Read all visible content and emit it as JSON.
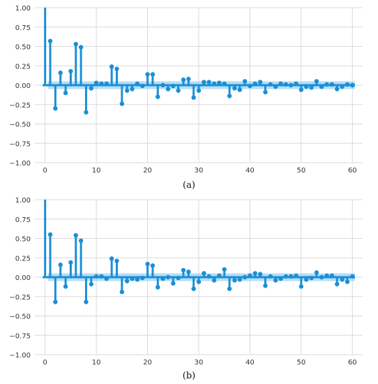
{
  "chart_data": [
    {
      "type": "stem",
      "title": "",
      "xlabel": "",
      "ylabel": "",
      "caption": "(a)",
      "xlim": [
        -2,
        62
      ],
      "ylim": [
        -1.0,
        1.0
      ],
      "xticks": [
        0,
        10,
        20,
        30,
        40,
        50,
        60
      ],
      "yticks": [
        1.0,
        0.75,
        0.5,
        0.25,
        0.0,
        -0.25,
        -0.5,
        -0.75,
        -1.0
      ],
      "xtick_labels": [
        "0",
        "10",
        "20",
        "30",
        "40",
        "50",
        "60"
      ],
      "ytick_labels": [
        "1.00",
        "0.75",
        "0.50",
        "0.25",
        "0.00",
        "−0.25",
        "−0.50",
        "−0.75",
        "−1.00"
      ],
      "grid": true,
      "confidence_band": 0.05,
      "colors": {
        "stem": "#1a8fd6",
        "band": "#9fd3f2",
        "axis": "#1a8fd6",
        "grid": "#d9d9d9"
      },
      "values": [
        1.0,
        0.57,
        -0.3,
        0.16,
        -0.1,
        0.18,
        0.53,
        0.49,
        -0.35,
        -0.04,
        0.03,
        0.02,
        0.02,
        0.24,
        0.21,
        -0.24,
        -0.07,
        -0.05,
        0.02,
        -0.01,
        0.14,
        0.14,
        -0.15,
        0.0,
        -0.05,
        -0.01,
        -0.07,
        0.07,
        0.08,
        -0.16,
        -0.07,
        0.04,
        0.04,
        0.02,
        0.03,
        0.02,
        -0.14,
        -0.04,
        -0.06,
        0.05,
        -0.01,
        0.02,
        0.04,
        -0.09,
        0.01,
        -0.02,
        0.02,
        0.01,
        0.0,
        0.02,
        -0.06,
        -0.02,
        -0.03,
        0.05,
        -0.02,
        0.01,
        0.01,
        -0.05,
        -0.02,
        0.01,
        0.0
      ]
    },
    {
      "type": "stem",
      "title": "",
      "xlabel": "",
      "ylabel": "",
      "caption": "(b)",
      "xlim": [
        -2,
        62
      ],
      "ylim": [
        -1.0,
        1.0
      ],
      "xticks": [
        0,
        10,
        20,
        30,
        40,
        50,
        60
      ],
      "yticks": [
        1.0,
        0.75,
        0.5,
        0.25,
        0.0,
        -0.25,
        -0.5,
        -0.75,
        -1.0
      ],
      "xtick_labels": [
        "0",
        "10",
        "20",
        "30",
        "40",
        "50",
        "60"
      ],
      "ytick_labels": [
        "1.00",
        "0.75",
        "0.50",
        "0.25",
        "0.00",
        "−0.25",
        "−0.50",
        "−0.75",
        "−1.00"
      ],
      "grid": true,
      "confidence_band": 0.05,
      "colors": {
        "stem": "#1a8fd6",
        "band": "#9fd3f2",
        "axis": "#1a8fd6",
        "grid": "#d9d9d9"
      },
      "values": [
        1.0,
        0.55,
        -0.32,
        0.16,
        -0.12,
        0.19,
        0.54,
        0.47,
        -0.32,
        -0.09,
        0.01,
        0.01,
        -0.02,
        0.24,
        0.21,
        -0.19,
        -0.05,
        -0.02,
        -0.03,
        -0.01,
        0.17,
        0.15,
        -0.13,
        -0.02,
        0.0,
        -0.08,
        -0.01,
        0.09,
        0.07,
        -0.15,
        -0.06,
        0.05,
        0.01,
        -0.04,
        0.02,
        0.1,
        -0.15,
        -0.04,
        -0.03,
        0.0,
        0.02,
        0.05,
        0.04,
        -0.11,
        0.01,
        -0.04,
        -0.02,
        0.01,
        0.01,
        0.02,
        -0.12,
        -0.03,
        -0.01,
        0.06,
        0.0,
        0.02,
        0.02,
        -0.09,
        -0.03,
        -0.06,
        0.01
      ]
    }
  ]
}
